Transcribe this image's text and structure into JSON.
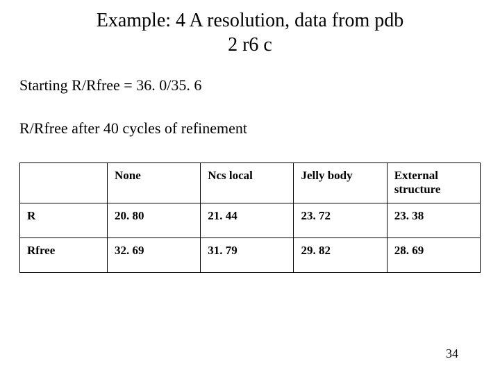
{
  "title_line1": "Example: 4 A resolution, data from pdb",
  "title_line2": "2 r6 c",
  "starting_line": "Starting R/Rfree = 36. 0/35. 6",
  "after_line": "R/Rfree after 40 cycles of refinement",
  "table": {
    "type": "table",
    "columns": [
      "",
      "None",
      "Ncs local",
      "Jelly body",
      "External structure"
    ],
    "rows": [
      [
        "R",
        "20. 80",
        "21. 44",
        "23. 72",
        "23. 38"
      ],
      [
        "Rfree",
        "32. 69",
        "31. 79",
        "29. 82",
        "28. 69"
      ]
    ],
    "border_color": "#000000",
    "border_width": 1.5,
    "header_font_weight": "bold",
    "cell_font_weight": "bold",
    "cell_fontsize": 17,
    "background_color": "#ffffff",
    "text_color": "#000000",
    "column_widths_pct": [
      19,
      20.25,
      20.25,
      20.25,
      20.25
    ]
  },
  "page_number": "34",
  "typography": {
    "title_fontsize": 28,
    "subtext_fontsize": 22,
    "pagenum_fontsize": 18,
    "font_family": "Times New Roman",
    "text_color": "#000000"
  },
  "background_color": "#ffffff"
}
